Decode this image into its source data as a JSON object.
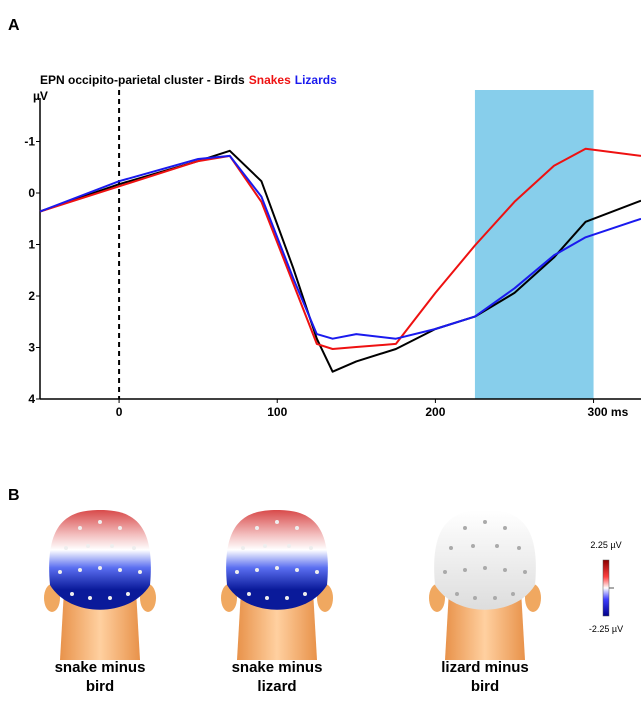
{
  "chart_data": {
    "type": "line",
    "panel_label": "A",
    "title": "EPN occipito-parietal cluster - ",
    "ylabel": "µV",
    "y_inverted": true,
    "xlim": [
      -50,
      330
    ],
    "ylim": [
      -2,
      4
    ],
    "xticks": [
      0,
      100,
      200,
      {
        "value": 300,
        "label": "300 ms"
      }
    ],
    "yticks": [
      -1,
      0,
      1,
      2,
      3,
      4
    ],
    "vline": 0,
    "highlight": [
      225,
      300
    ],
    "highlight_color": "#87ceeb",
    "x": [
      -50,
      0,
      50,
      70,
      90,
      110,
      125,
      135,
      150,
      175,
      200,
      225,
      250,
      275,
      295,
      330
    ],
    "series": [
      {
        "name": "Birds",
        "color": "#000000",
        "values": [
          0.36,
          -0.17,
          -0.62,
          -0.82,
          -0.23,
          1.45,
          2.83,
          3.47,
          3.27,
          3.03,
          2.64,
          2.4,
          1.94,
          1.25,
          0.56,
          0.15
        ]
      },
      {
        "name": "Snakes",
        "color": "#ee1111",
        "values": [
          0.36,
          -0.13,
          -0.62,
          -0.72,
          0.17,
          1.75,
          2.93,
          3.03,
          2.99,
          2.93,
          1.94,
          1.02,
          0.17,
          -0.53,
          -0.86,
          -0.72
        ]
      },
      {
        "name": "Lizards",
        "color": "#1a1aee",
        "values": [
          0.36,
          -0.23,
          -0.66,
          -0.72,
          0.07,
          1.65,
          2.74,
          2.83,
          2.74,
          2.83,
          2.64,
          2.4,
          1.85,
          1.21,
          0.86,
          0.5
        ]
      }
    ]
  },
  "panel_b": {
    "label": "B",
    "maps": [
      {
        "caption": [
          "snake minus",
          "bird"
        ]
      },
      {
        "caption": [
          "snake minus",
          "lizard"
        ]
      },
      {
        "caption": [
          "lizard minus",
          "bird"
        ]
      }
    ],
    "colorbar_labels": [
      "2.25 µV",
      "-2.25 µV"
    ]
  }
}
